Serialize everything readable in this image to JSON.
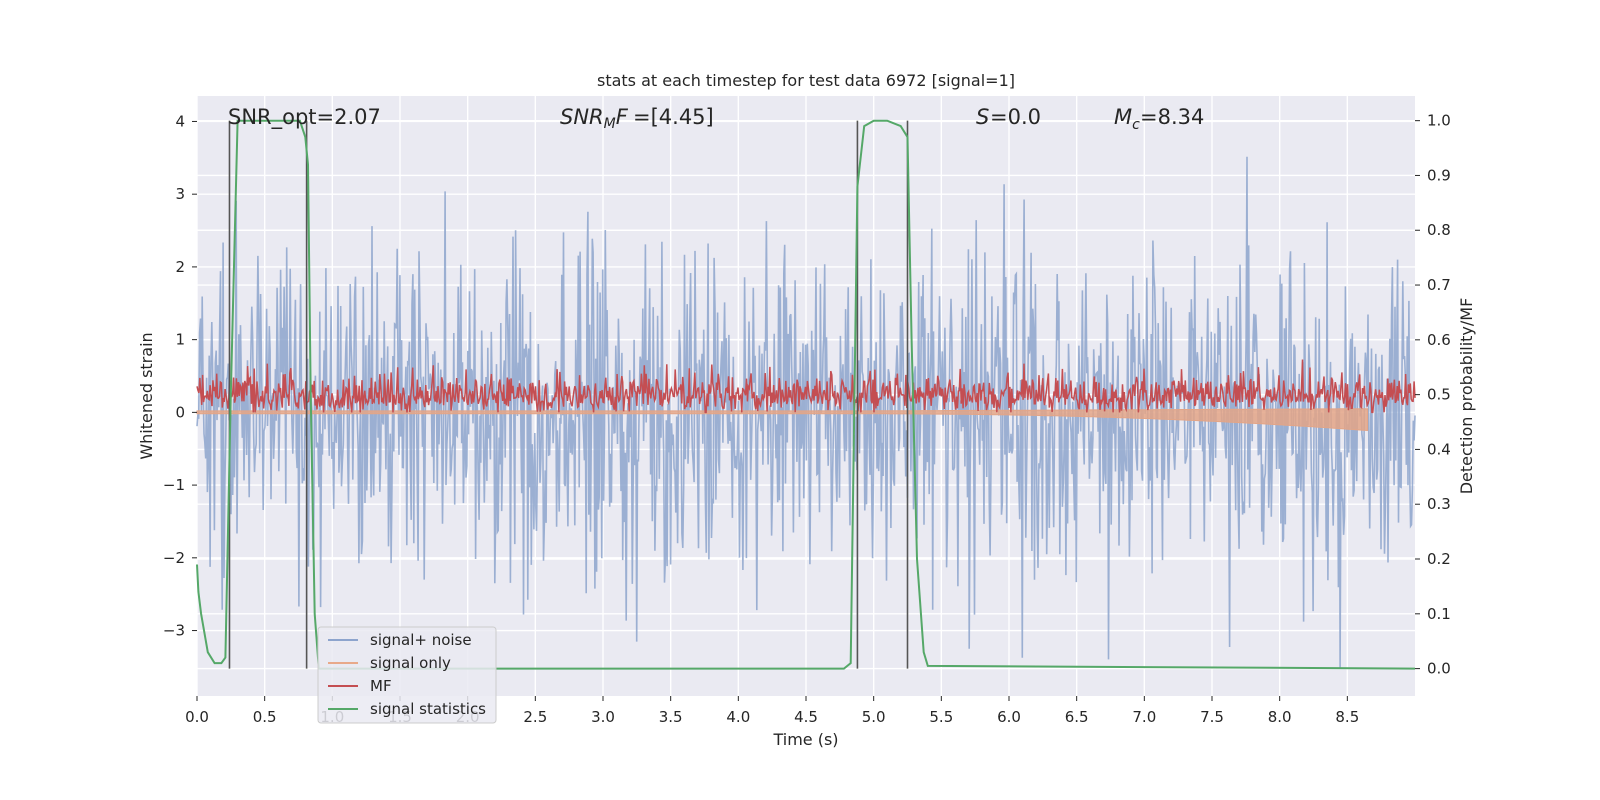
{
  "chart_data": {
    "type": "line",
    "title": "stats at each timestep for test data 6972 [signal=1]",
    "xlabel": "Time (s)",
    "ylabel_left": "Whitened strain",
    "ylabel_right": "Detection probability/MF",
    "xlim": [
      0.0,
      9.0
    ],
    "ylim_left": [
      -3.9,
      4.35
    ],
    "ylim_right": [
      -0.05,
      1.045
    ],
    "x_ticks": [
      "0.0",
      "0.5",
      "1.0",
      "1.5",
      "2.0",
      "2.5",
      "3.0",
      "3.5",
      "4.0",
      "4.5",
      "5.0",
      "5.5",
      "6.0",
      "6.5",
      "7.0",
      "7.5",
      "8.0",
      "8.5"
    ],
    "x_tick_values": [
      0,
      0.5,
      1,
      1.5,
      2,
      2.5,
      3,
      3.5,
      4,
      4.5,
      5,
      5.5,
      6,
      6.5,
      7,
      7.5,
      8,
      8.5
    ],
    "y_left_ticks": [
      "4",
      "3",
      "2",
      "1",
      "0",
      "−1",
      "−2",
      "−3"
    ],
    "y_left_tick_values": [
      4,
      3,
      2,
      1,
      0,
      -1,
      -2,
      -3
    ],
    "y_right_ticks": [
      "1.0",
      "0.9",
      "0.8",
      "0.7",
      "0.6",
      "0.5",
      "0.4",
      "0.3",
      "0.2",
      "0.1",
      "0.0"
    ],
    "y_right_tick_values": [
      1.0,
      0.9,
      0.8,
      0.7,
      0.6,
      0.5,
      0.4,
      0.3,
      0.2,
      0.1,
      0.0
    ],
    "grid": true,
    "legend_position": "lower-left",
    "annotations": {
      "snr_opt": "SNR_opt=2.07",
      "snr_mf": "=[4.45]",
      "s": "=0.0",
      "mc": "=8.34"
    },
    "vertical_markers_s": [
      0.24,
      0.81,
      4.88,
      5.25
    ],
    "series": [
      {
        "name": "signal+ noise",
        "color": "#8da4cd",
        "axis": "left",
        "envelope": {
          "x_range": [
            0.0,
            9.0
          ],
          "typical_min": -2.2,
          "typical_max": 2.2,
          "extreme_min": -3.6,
          "extreme_max": 4.0
        }
      },
      {
        "name": "signal only",
        "color": "#dd8452",
        "axis": "left",
        "envelope": {
          "x_range": [
            0.0,
            8.65
          ],
          "min_at_end": -0.23,
          "max": 0.05
        }
      },
      {
        "name": "MF",
        "color": "#c44e52",
        "axis": "left",
        "envelope": {
          "x_range": [
            0.0,
            9.0
          ],
          "typical_min": 0.0,
          "typical_max": 0.6,
          "extreme_max": 1.0
        }
      },
      {
        "name": "signal statistics",
        "color": "#55a868",
        "axis": "right",
        "x": [
          0.0,
          0.01,
          0.03,
          0.08,
          0.13,
          0.18,
          0.21,
          0.25,
          0.3,
          0.33,
          0.6,
          0.7,
          0.76,
          0.8,
          0.82,
          0.84,
          0.87,
          0.9,
          4.7,
          4.78,
          4.83,
          4.88,
          4.93,
          5.0,
          5.1,
          5.2,
          5.25,
          5.28,
          5.32,
          5.37,
          5.4,
          9.0
        ],
        "y": [
          0.19,
          0.14,
          0.1,
          0.03,
          0.01,
          0.01,
          0.02,
          0.5,
          1.0,
          1.0,
          1.0,
          1.0,
          1.0,
          0.97,
          0.92,
          0.5,
          0.1,
          0.0,
          0.0,
          0.0,
          0.01,
          0.88,
          0.99,
          1.0,
          1.0,
          0.99,
          0.97,
          0.6,
          0.2,
          0.03,
          0.005,
          0.0
        ]
      }
    ]
  }
}
